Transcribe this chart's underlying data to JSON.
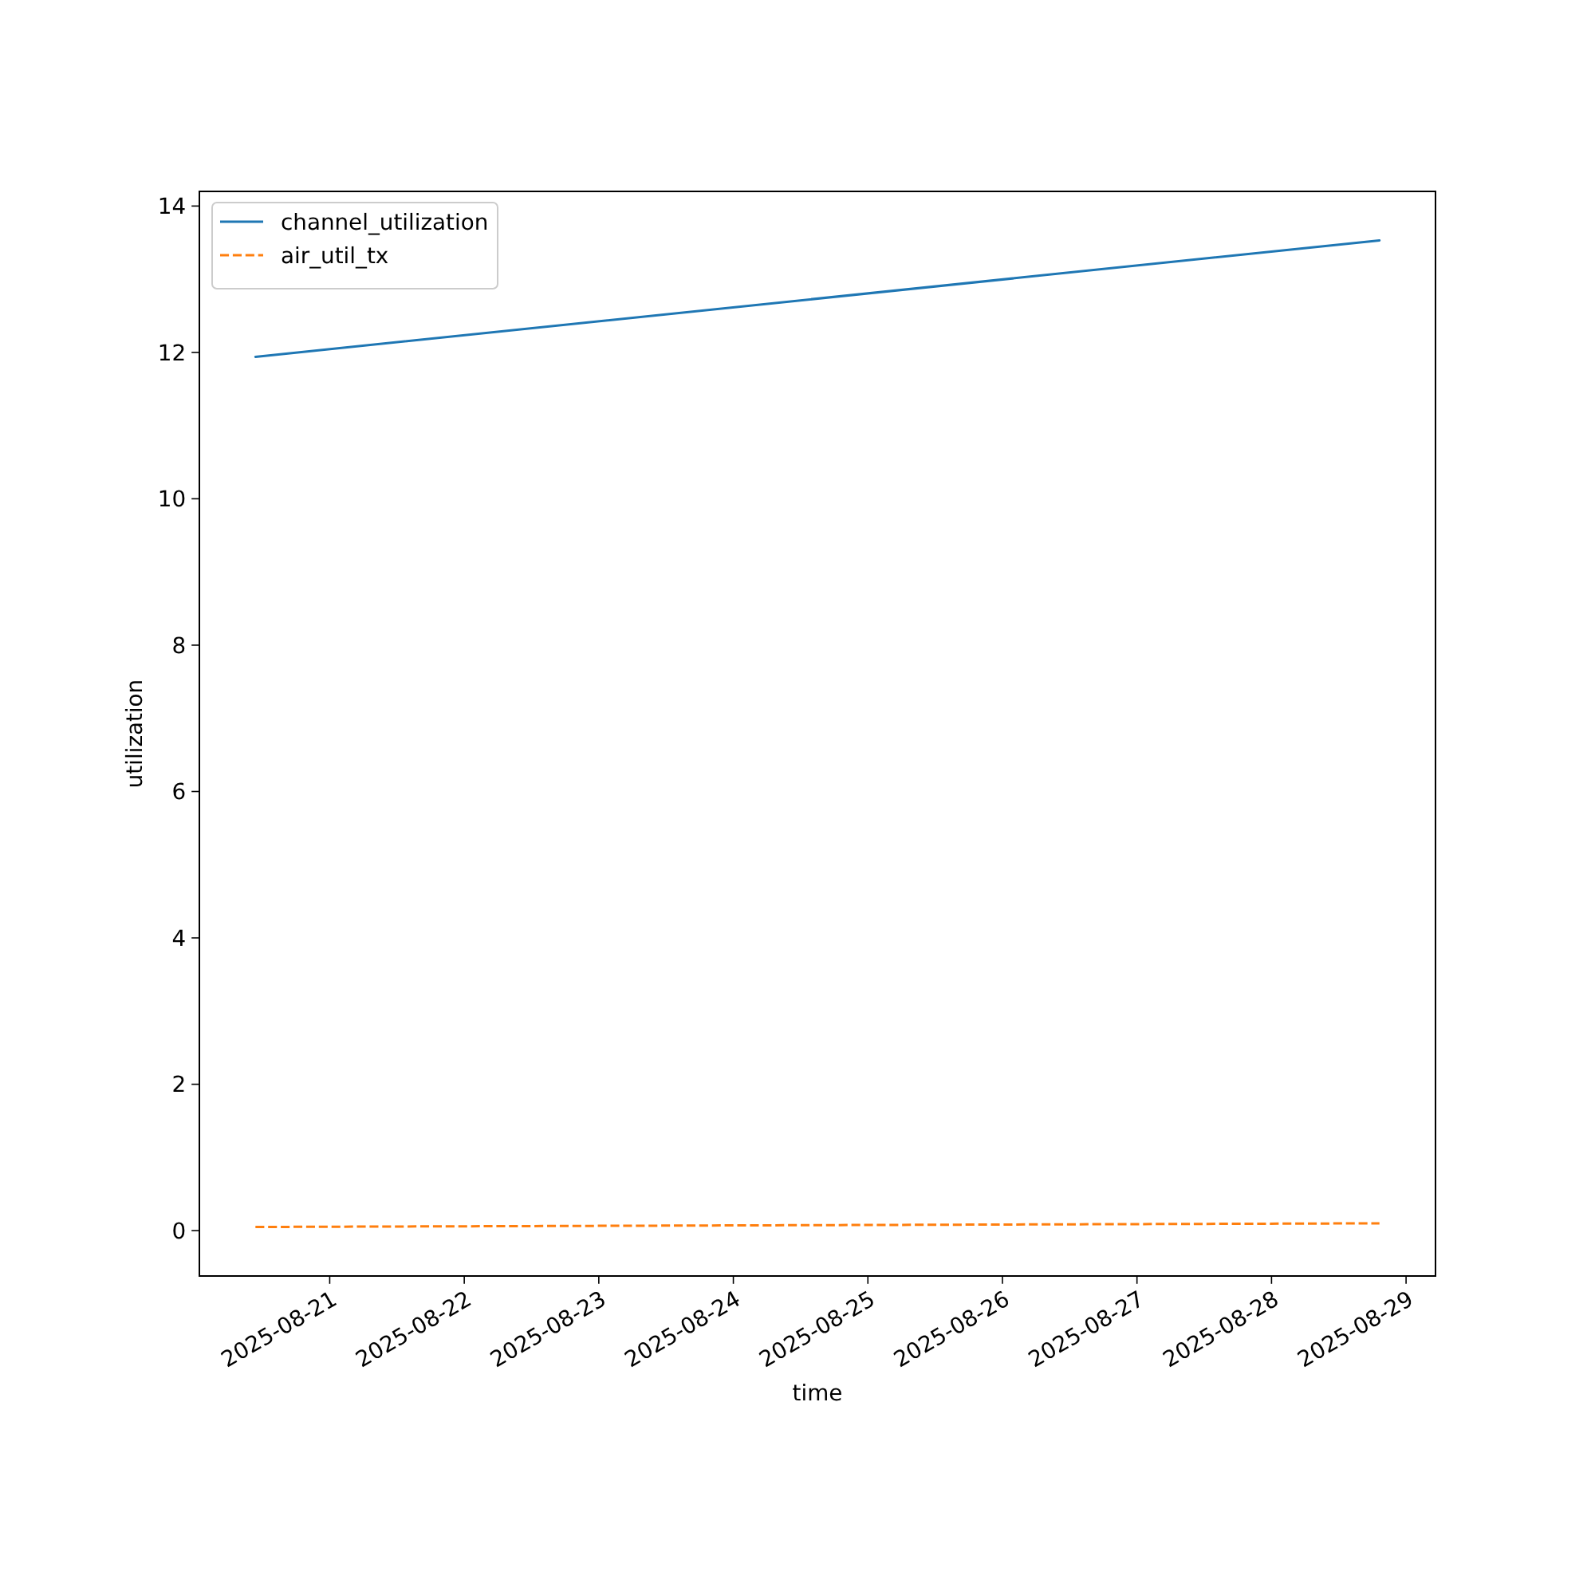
{
  "chart_data": {
    "type": "line",
    "xlabel": "time",
    "ylabel": "utilization",
    "legend": "top left",
    "series": [
      {
        "name": "channel_utilization",
        "color": "#1f77b4",
        "line_style": "solid",
        "x": [
          "2025-08-20T10:45",
          "2025-08-28T19:15"
        ],
        "values": [
          11.94,
          13.53
        ]
      },
      {
        "name": "air_util_tx",
        "color": "#ff7f0e",
        "line_style": "dashed",
        "x": [
          "2025-08-20T10:45",
          "2025-08-28T19:15"
        ],
        "values": [
          0.05,
          0.1
        ]
      }
    ],
    "xlim": [
      "2025-08-20T00:45",
      "2025-08-29T05:15"
    ],
    "xticks": [
      "2025-08-21",
      "2025-08-22",
      "2025-08-23",
      "2025-08-24",
      "2025-08-25",
      "2025-08-26",
      "2025-08-27",
      "2025-08-28",
      "2025-08-29"
    ],
    "ylim": [
      -0.62,
      14.2
    ],
    "yticks": [
      0,
      2,
      4,
      6,
      8,
      10,
      12,
      14
    ]
  }
}
